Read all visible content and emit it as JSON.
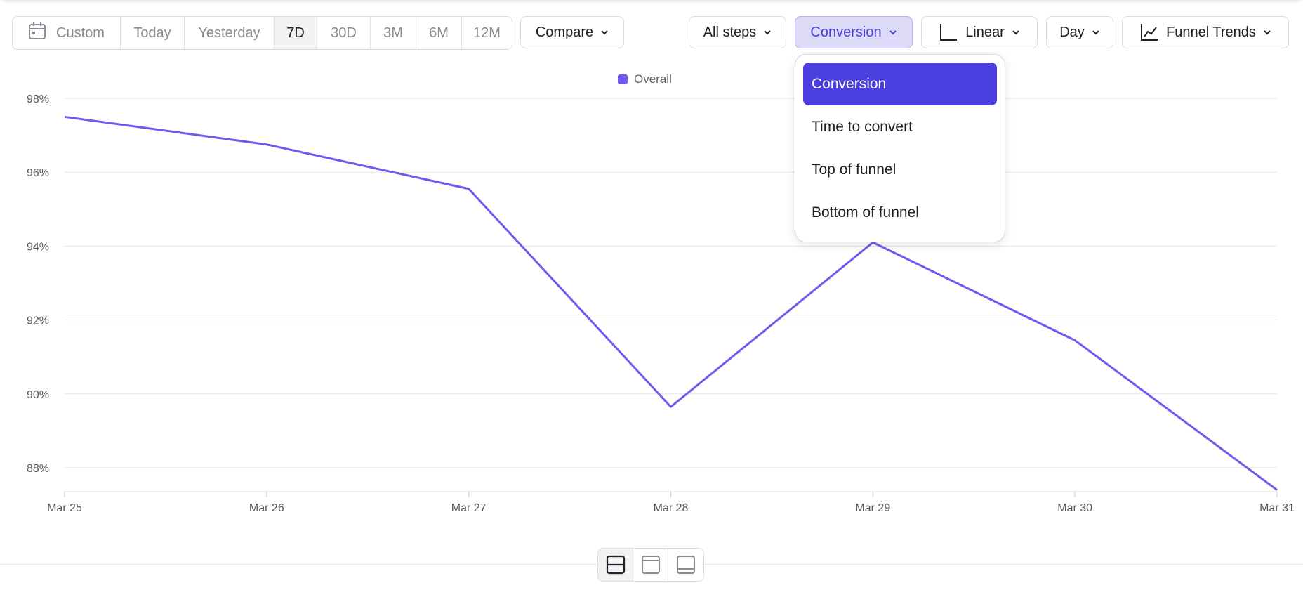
{
  "toolbar": {
    "date_range": {
      "custom_label": "Custom",
      "options": [
        "Today",
        "Yesterday",
        "7D",
        "30D",
        "3M",
        "6M",
        "12M"
      ],
      "selected": "7D"
    },
    "compare_label": "Compare",
    "steps_label": "All steps",
    "metric_label": "Conversion",
    "scale_label": "Linear",
    "interval_label": "Day",
    "chart_type_label": "Funnel Trends"
  },
  "metric_menu": {
    "items": [
      "Conversion",
      "Time to convert",
      "Top of funnel",
      "Bottom of funnel"
    ],
    "selected": "Conversion"
  },
  "legend": {
    "label": "Overall"
  },
  "colors": {
    "accent": "#4b3fe0",
    "series": "#7058f0",
    "selected_bg": "#dcdaf7"
  },
  "icons": [
    "calendar-icon",
    "chevron-down-icon",
    "axis-icon",
    "line-chart-icon",
    "layout-split-icon",
    "layout-top-icon",
    "layout-bottom-icon"
  ],
  "chart_data": {
    "type": "line",
    "title": "",
    "xlabel": "",
    "ylabel": "",
    "categories": [
      "Mar 25",
      "Mar 26",
      "Mar 27",
      "Mar 28",
      "Mar 29",
      "Mar 30",
      "Mar 31"
    ],
    "series": [
      {
        "name": "Overall",
        "values": [
          97.5,
          96.75,
          95.55,
          89.65,
          94.1,
          91.45,
          87.4
        ]
      }
    ],
    "ylim": [
      87.35,
      98
    ],
    "yticks": [
      88,
      90,
      92,
      94,
      96,
      98
    ],
    "ytick_labels": [
      "88%",
      "90%",
      "92%",
      "94%",
      "96%",
      "98%"
    ],
    "grid": true,
    "legend_position": "top-center"
  }
}
